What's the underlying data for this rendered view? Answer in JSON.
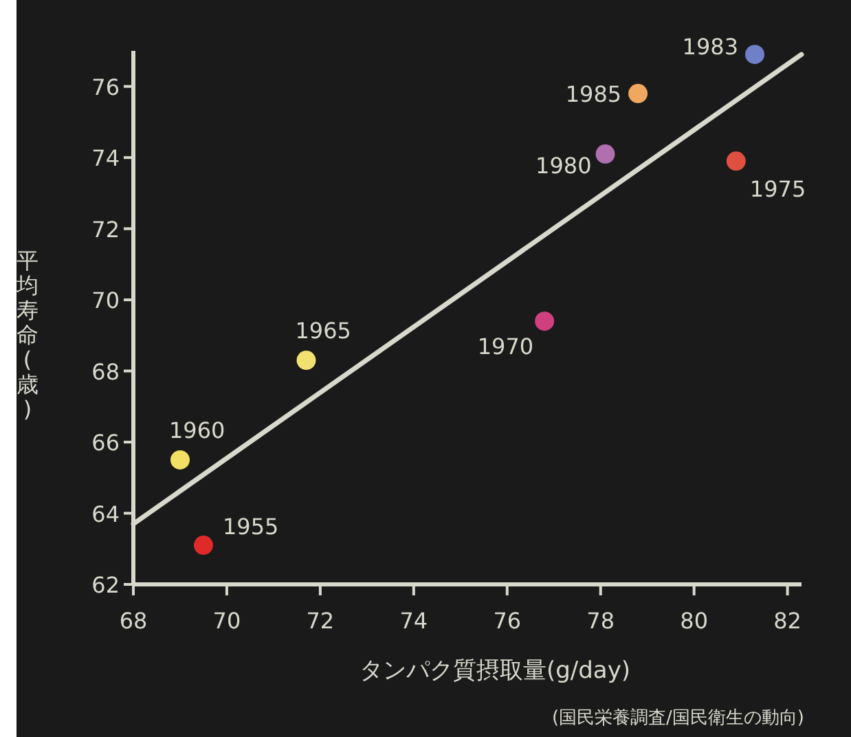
{
  "chart_data": {
    "type": "scatter",
    "xlabel": "タンパク質摂取量(g/day)",
    "ylabel": "平均寿命(歳)",
    "xlim": [
      68,
      82.3
    ],
    "xticks": [
      68,
      70,
      72,
      74,
      76,
      78,
      80,
      82
    ],
    "ylim": [
      62,
      77
    ],
    "yticks": [
      62,
      64,
      66,
      68,
      70,
      72,
      74,
      76
    ],
    "grid": false,
    "series": [
      {
        "marker": "circle",
        "x": [
          69.5,
          69.0,
          71.7,
          76.8,
          80.9,
          78.1,
          81.3,
          78.8
        ],
        "values": [
          63.1,
          65.5,
          68.3,
          69.4,
          73.9,
          74.1,
          76.9,
          75.8
        ],
        "colors": [
          "#e02a2a",
          "#f2e064",
          "#f2e070",
          "#d0407e",
          "#e05040",
          "#b070b0",
          "#7080c8",
          "#f0a860"
        ]
      },
      {
        "type": "line",
        "x": [
          68,
          82.3
        ],
        "values": [
          63.7,
          76.9
        ],
        "color": "#d8d8cc",
        "line_style": "solid"
      }
    ],
    "annotations": [
      {
        "text": "1955",
        "x": 69.5,
        "y": 63.1
      },
      {
        "text": "1960",
        "x": 69.0,
        "y": 65.5
      },
      {
        "text": "1965",
        "x": 71.7,
        "y": 68.3
      },
      {
        "text": "1970",
        "x": 76.8,
        "y": 69.4
      },
      {
        "text": "1975",
        "x": 80.9,
        "y": 73.9
      },
      {
        "text": "1980",
        "x": 78.1,
        "y": 74.1
      },
      {
        "text": "1983",
        "x": 81.3,
        "y": 76.9
      },
      {
        "text": "1985",
        "x": 78.8,
        "y": 75.8
      },
      "(国民栄養調査/国民衛生の動向)"
    ]
  }
}
